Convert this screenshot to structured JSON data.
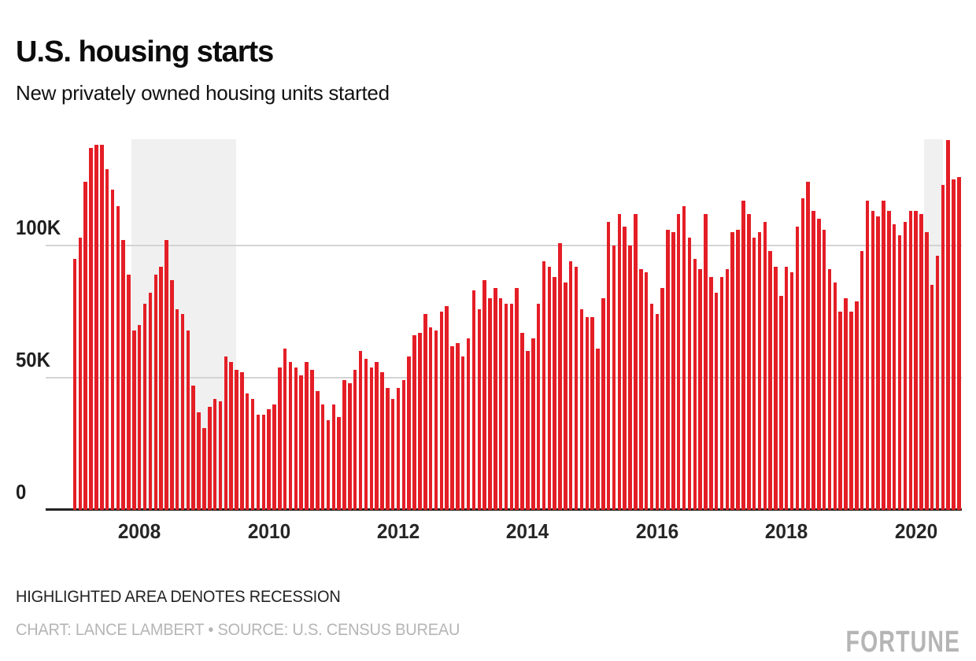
{
  "header": {
    "title": "U.S. housing starts",
    "subtitle": "New privately owned housing units started"
  },
  "footer": {
    "note": "HIGHLIGHTED AREA DENOTES RECESSION",
    "credit": "CHART: LANCE LAMBERT • SOURCE: U.S. CENSUS BUREAU",
    "brand": "FORTUNE"
  },
  "chart_data": {
    "type": "bar",
    "title": "U.S. housing starts",
    "subtitle": "New privately owned housing units started",
    "unit": "thousands of housing units per month",
    "start_month": "2007-01",
    "end_month": "2020-09",
    "ylim": [
      0,
      140
    ],
    "grid": "horizontal",
    "legend": "none",
    "bar_color": "#E41E26",
    "recession_shade_color": "#F0F0F0",
    "recessions": [
      {
        "from": "2007-12",
        "to": "2009-06"
      },
      {
        "from": "2020-03",
        "to": "2020-05"
      }
    ],
    "y_ticks": [
      {
        "label": "100K",
        "value": 100
      },
      {
        "label": "50K",
        "value": 50
      },
      {
        "label": "0",
        "value": 0
      }
    ],
    "x_ticks": [
      {
        "label": "2008",
        "year": 2008
      },
      {
        "label": "2010",
        "year": 2010
      },
      {
        "label": "2012",
        "year": 2012
      },
      {
        "label": "2014",
        "year": 2014
      },
      {
        "label": "2016",
        "year": 2016
      },
      {
        "label": "2018",
        "year": 2018
      },
      {
        "label": "2020",
        "year": 2020
      }
    ],
    "series": [
      {
        "name": "Housing units started (thousands, monthly)",
        "values": [
          95,
          103,
          124,
          137,
          138,
          138,
          129,
          121,
          115,
          102,
          89,
          68,
          70,
          78,
          82,
          89,
          92,
          102,
          87,
          76,
          74,
          68,
          47,
          37,
          31,
          39,
          42,
          41,
          58,
          56,
          53,
          52,
          44,
          42,
          36,
          36,
          38,
          40,
          54,
          61,
          56,
          54,
          51,
          56,
          53,
          45,
          40,
          34,
          40,
          35,
          49,
          48,
          53,
          60,
          57,
          54,
          56,
          52,
          46,
          42,
          46,
          49,
          58,
          66,
          67,
          74,
          69,
          68,
          75,
          77,
          62,
          63,
          58,
          65,
          83,
          76,
          87,
          80,
          84,
          80,
          78,
          78,
          84,
          67,
          60,
          65,
          78,
          94,
          92,
          88,
          101,
          86,
          94,
          92,
          76,
          73,
          73,
          61,
          80,
          109,
          100,
          112,
          107,
          100,
          112,
          91,
          90,
          78,
          74,
          84,
          106,
          105,
          112,
          115,
          103,
          95,
          91,
          112,
          88,
          82,
          88,
          91,
          105,
          106,
          117,
          112,
          103,
          105,
          109,
          98,
          92,
          81,
          92,
          90,
          107,
          118,
          124,
          113,
          110,
          106,
          91,
          86,
          75,
          80,
          75,
          79,
          98,
          117,
          113,
          111,
          117,
          113,
          108,
          104,
          109,
          113,
          113,
          112,
          105,
          85,
          96,
          123,
          140,
          125,
          126
        ]
      }
    ]
  }
}
